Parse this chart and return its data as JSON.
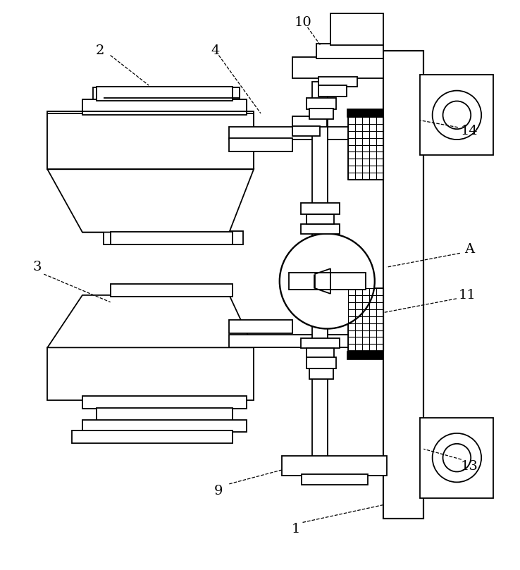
{
  "bg_color": "#ffffff",
  "line_color": "#000000",
  "lw": 1.3,
  "fig_width": 7.38,
  "fig_height": 8.09
}
